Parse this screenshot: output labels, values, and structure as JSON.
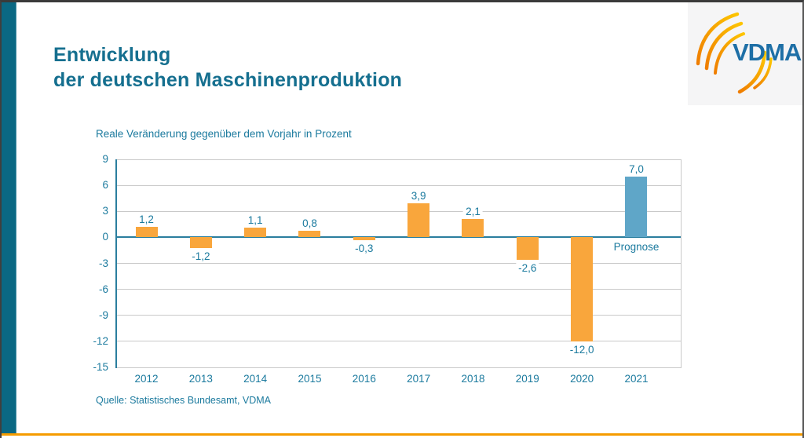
{
  "slide": {
    "title_line1": "Entwicklung",
    "title_line2": "der deutschen Maschinenproduktion",
    "source": "Quelle: Statistisches Bundesamt, VDMA"
  },
  "logo": {
    "text": "VDMA"
  },
  "chart_data": {
    "type": "bar",
    "title": "Reale Veränderung gegenüber dem Vorjahr in Prozent",
    "categories": [
      "2012",
      "2013",
      "2014",
      "2015",
      "2016",
      "2017",
      "2018",
      "2019",
      "2020",
      "2021"
    ],
    "values": [
      1.2,
      -1.2,
      1.1,
      0.8,
      -0.3,
      3.9,
      2.1,
      -2.6,
      -12.0,
      7.0
    ],
    "value_labels": [
      "1,2",
      "-1,2",
      "1,1",
      "0,8",
      "-0,3",
      "3,9",
      "2,1",
      "-2,6",
      "-12,0",
      "7,0"
    ],
    "annotation": {
      "index": 9,
      "label": "Prognose"
    },
    "ylim": [
      -15,
      9
    ],
    "ytick_step": 3,
    "grid": true,
    "legend": "none",
    "colors": {
      "bar": "#F9A63C",
      "forecast_bar": "#5FA6C8",
      "axis_text": "#1B7A9E",
      "zero_line": "#2A7E9E",
      "gridline": "#C9C9C9",
      "accent_teal": "#0A6883",
      "accent_orange": "#F59B00",
      "title_text": "#156F8F",
      "logo_blue": "#1E6FA6"
    }
  }
}
